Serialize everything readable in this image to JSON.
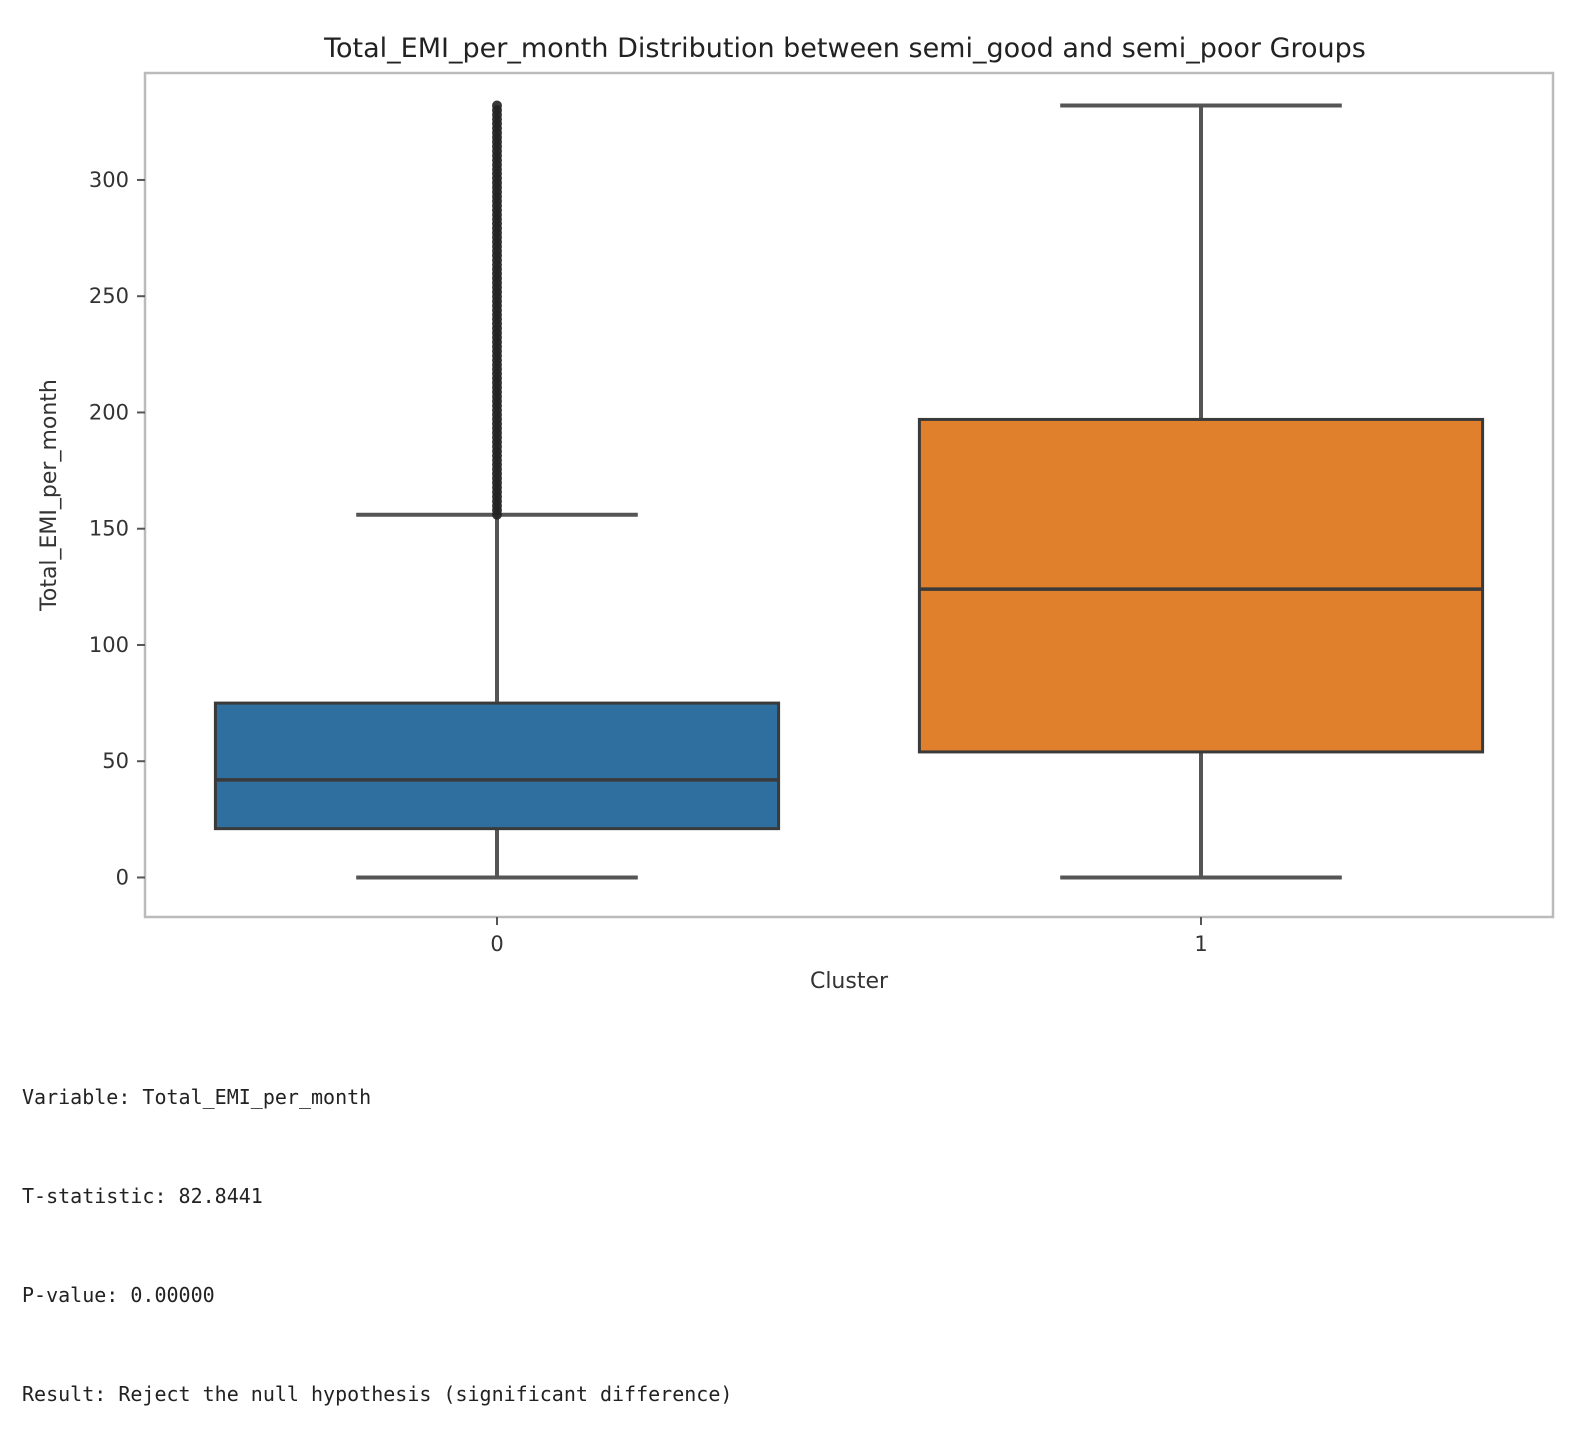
{
  "chart_data": {
    "type": "box",
    "title": "Total_EMI_per_month Distribution between semi_good and semi_poor Groups",
    "xlabel": "Cluster",
    "ylabel": "Total_EMI_per_month",
    "categories": [
      "0",
      "1"
    ],
    "ylim": [
      -17,
      346
    ],
    "yticks": [
      0,
      50,
      100,
      150,
      200,
      250,
      300
    ],
    "grid": false,
    "colors": {
      "0": "#2f6f9f",
      "1": "#e0802c",
      "whisker": "#555555",
      "outlier": "#222222",
      "axes": "#bbbbbb"
    },
    "boxes": [
      {
        "category": "0",
        "whisker_low": 0,
        "q1": 21,
        "median": 42,
        "q3": 75,
        "whisker_high": 156,
        "outliers_range": [
          156,
          332
        ]
      },
      {
        "category": "1",
        "whisker_low": 0,
        "q1": 54,
        "median": 124,
        "q3": 197,
        "whisker_high": 332,
        "outliers_range": null
      }
    ]
  },
  "output": {
    "lines": [
      "Variable: Total_EMI_per_month",
      "T-statistic: 82.8441",
      "P-value: 0.00000",
      "Result: Reject the null hypothesis (significant difference)"
    ]
  }
}
